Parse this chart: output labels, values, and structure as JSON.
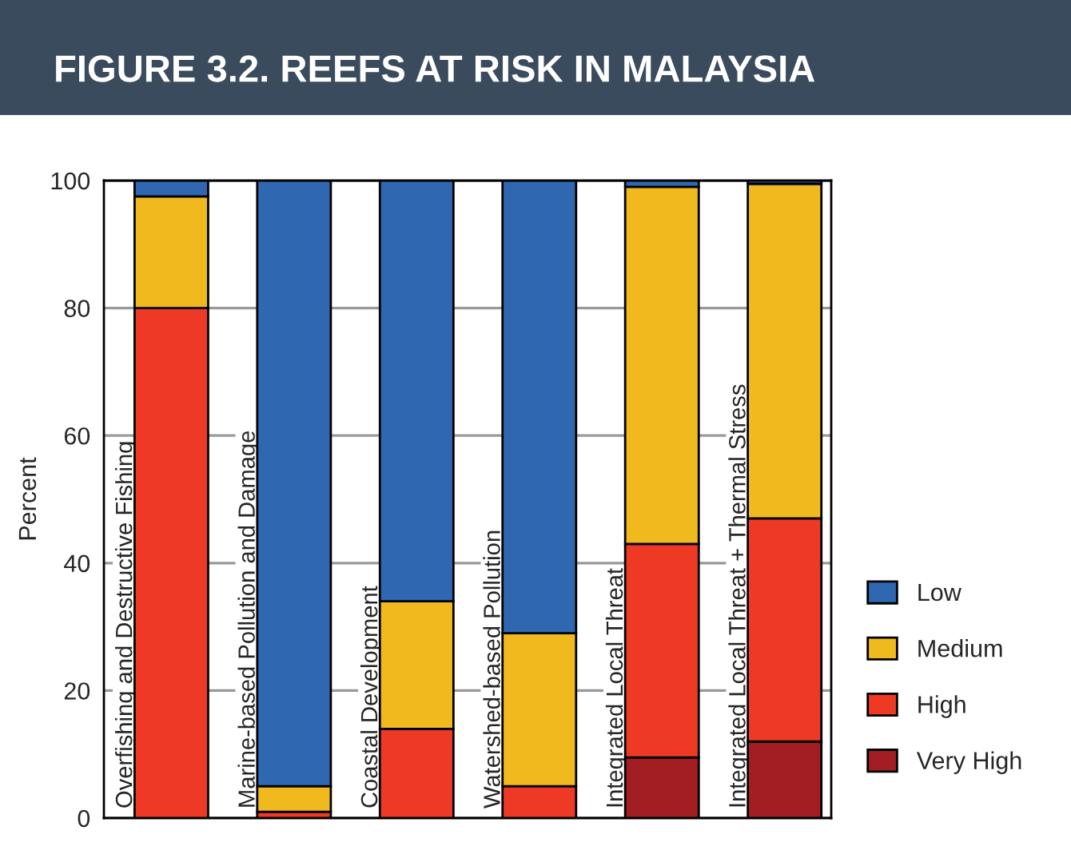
{
  "chart_data": {
    "type": "bar",
    "title": "FIGURE 3.2. REEFS AT RISK IN MALAYSIA",
    "ylabel": "Percent",
    "categories": [
      "Overfishing and Destructive Fishing",
      "Marine-based Pollution and Damage",
      "Coastal Development",
      "Watershed-based Pollution",
      "Integrated Local Threat",
      "Integrated Local Threat + Thermal Stress"
    ],
    "stacked": true,
    "series": [
      {
        "name": "Very High",
        "color": "#a21e23",
        "values": [
          0,
          0,
          0,
          0,
          9.5,
          12
        ]
      },
      {
        "name": "High",
        "color": "#ee3a25",
        "values": [
          80,
          1,
          14,
          5,
          33.5,
          35
        ]
      },
      {
        "name": "Medium",
        "color": "#f0b91e",
        "values": [
          17.5,
          4,
          20,
          24,
          56,
          52.5
        ]
      },
      {
        "name": "Low",
        "color": "#2f67b1",
        "values": [
          2.5,
          95,
          66,
          71,
          1,
          0.5
        ]
      }
    ],
    "ylim": [
      0,
      100
    ],
    "yticks": [
      0,
      20,
      40,
      60,
      80,
      100
    ],
    "grid": "y",
    "legend": "right"
  }
}
